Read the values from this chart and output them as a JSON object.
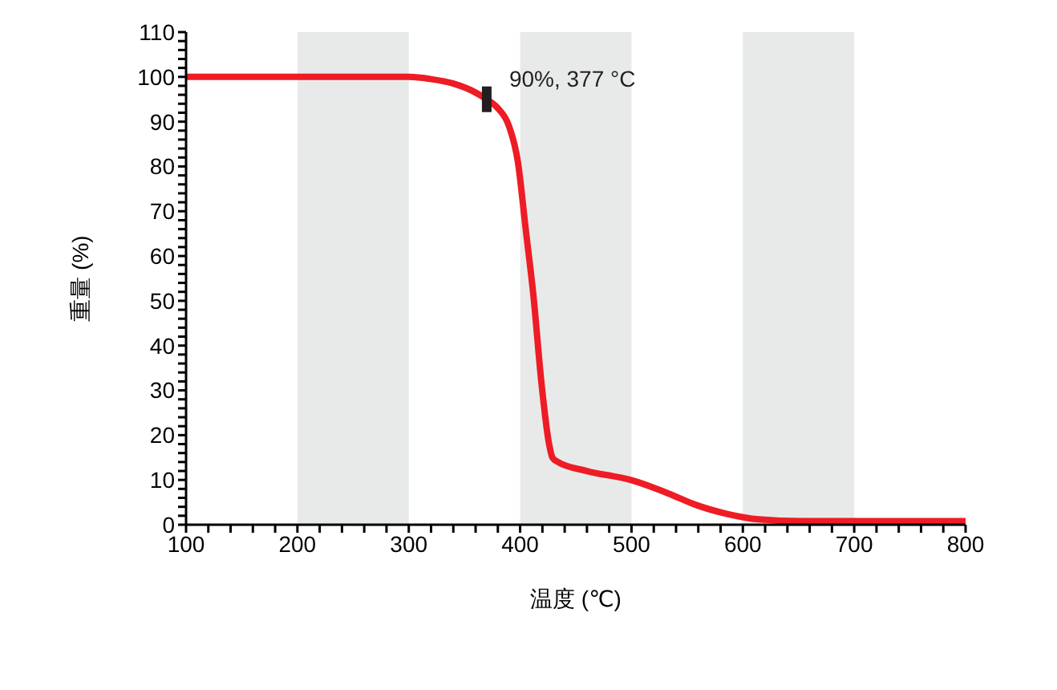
{
  "chart_data": {
    "type": "line",
    "xlabel": "温度 (℃)",
    "ylabel": "重量 (%)",
    "x": [
      100,
      200,
      300,
      320,
      340,
      360,
      370,
      380,
      390,
      398,
      405,
      412,
      419,
      426,
      429,
      434,
      460,
      499,
      533,
      557,
      586,
      614,
      653,
      700,
      800
    ],
    "series": [
      {
        "color": "#ee1c25",
        "values": [
          100,
          100,
          100,
          99.5,
          98.5,
          96.5,
          95,
          93,
          89,
          81,
          66,
          51,
          32,
          18,
          15,
          14,
          12,
          10,
          7,
          4.5,
          2.4,
          1.2,
          0.8,
          0.8,
          0.8
        ]
      }
    ],
    "xlim": [
      100,
      800
    ],
    "ylim": [
      0,
      110
    ],
    "xticks": [
      100,
      {
        "value": 120,
        "label": null
      },
      {
        "value": 140,
        "label": null
      },
      {
        "value": 160,
        "label": null
      },
      {
        "value": 180,
        "label": null
      },
      200,
      {
        "value": 220,
        "label": null
      },
      {
        "value": 240,
        "label": null
      },
      {
        "value": 260,
        "label": null
      },
      {
        "value": 280,
        "label": null
      },
      300,
      {
        "value": 320,
        "label": null
      },
      {
        "value": 340,
        "label": null
      },
      {
        "value": 360,
        "label": null
      },
      {
        "value": 380,
        "label": null
      },
      400,
      {
        "value": 420,
        "label": null
      },
      {
        "value": 440,
        "label": null
      },
      {
        "value": 460,
        "label": null
      },
      {
        "value": 480,
        "label": null
      },
      500,
      {
        "value": 520,
        "label": null
      },
      {
        "value": 540,
        "label": null
      },
      {
        "value": 560,
        "label": null
      },
      {
        "value": 580,
        "label": null
      },
      600,
      {
        "value": 620,
        "label": null
      },
      {
        "value": 640,
        "label": null
      },
      {
        "value": 660,
        "label": null
      },
      {
        "value": 680,
        "label": null
      },
      700,
      {
        "value": 720,
        "label": null
      },
      {
        "value": 740,
        "label": null
      },
      {
        "value": 760,
        "label": null
      },
      {
        "value": 780,
        "label": null
      },
      800
    ],
    "yticks": [
      0,
      {
        "value": 2,
        "label": null
      },
      {
        "value": 4,
        "label": null
      },
      {
        "value": 6,
        "label": null
      },
      {
        "value": 8,
        "label": null
      },
      10,
      {
        "value": 12,
        "label": null
      },
      {
        "value": 14,
        "label": null
      },
      {
        "value": 16,
        "label": null
      },
      {
        "value": 18,
        "label": null
      },
      20,
      {
        "value": 22,
        "label": null
      },
      {
        "value": 24,
        "label": null
      },
      {
        "value": 26,
        "label": null
      },
      {
        "value": 28,
        "label": null
      },
      30,
      {
        "value": 32,
        "label": null
      },
      {
        "value": 34,
        "label": null
      },
      {
        "value": 36,
        "label": null
      },
      {
        "value": 38,
        "label": null
      },
      40,
      {
        "value": 42,
        "label": null
      },
      {
        "value": 44,
        "label": null
      },
      {
        "value": 46,
        "label": null
      },
      {
        "value": 48,
        "label": null
      },
      50,
      {
        "value": 52,
        "label": null
      },
      {
        "value": 54,
        "label": null
      },
      {
        "value": 56,
        "label": null
      },
      {
        "value": 58,
        "label": null
      },
      60,
      {
        "value": 62,
        "label": null
      },
      {
        "value": 64,
        "label": null
      },
      {
        "value": 66,
        "label": null
      },
      {
        "value": 68,
        "label": null
      },
      70,
      {
        "value": 72,
        "label": null
      },
      {
        "value": 74,
        "label": null
      },
      {
        "value": 76,
        "label": null
      },
      {
        "value": 78,
        "label": null
      },
      80,
      {
        "value": 82,
        "label": null
      },
      {
        "value": 84,
        "label": null
      },
      {
        "value": 86,
        "label": null
      },
      {
        "value": 88,
        "label": null
      },
      90,
      {
        "value": 92,
        "label": null
      },
      {
        "value": 94,
        "label": null
      },
      {
        "value": 96,
        "label": null
      },
      {
        "value": 98,
        "label": null
      },
      100,
      {
        "value": 102,
        "label": null
      },
      {
        "value": 104,
        "label": null
      },
      {
        "value": 106,
        "label": null
      },
      {
        "value": 108,
        "label": null
      },
      110
    ],
    "bands": [
      {
        "axis": "x",
        "from": 200,
        "to": 300,
        "color": "#e8eaea"
      },
      {
        "axis": "x",
        "from": 400,
        "to": 500,
        "color": "#e8eaea"
      },
      {
        "axis": "x",
        "from": 600,
        "to": 700,
        "color": "#e8eaea"
      }
    ],
    "annotations": [
      {
        "text": "90%, 377 °C",
        "x": 370,
        "y": 95
      }
    ],
    "marker": "none",
    "line_style": "solid"
  }
}
